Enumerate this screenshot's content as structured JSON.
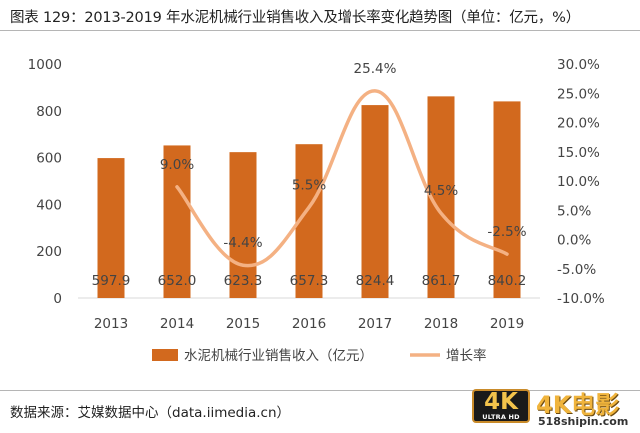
{
  "figure": {
    "title": "图表 129：2013-2019 年水泥机械行业销售收入及增长率变化趋势图（单位：亿元，%）",
    "source": "数据来源：艾媒数据中心（data.iimedia.cn）"
  },
  "chart_data": {
    "type": "bar+line",
    "categories": [
      "2013",
      "2014",
      "2015",
      "2016",
      "2017",
      "2018",
      "2019"
    ],
    "series": [
      {
        "name": "水泥机械行业销售收入（亿元）",
        "type": "bar",
        "axis": "left",
        "color": "#d2691e",
        "values": [
          597.9,
          652.0,
          623.3,
          657.3,
          824.4,
          861.7,
          840.2
        ],
        "labels": [
          "597.9",
          "652.0",
          "623.3",
          "657.3",
          "824.4",
          "861.7",
          "840.2"
        ]
      },
      {
        "name": "增长率",
        "type": "line",
        "axis": "right",
        "color": "#f4b183",
        "values": [
          null,
          9.0,
          -4.4,
          5.5,
          25.4,
          4.5,
          -2.5
        ],
        "labels": [
          "",
          "9.0%",
          "-4.4%",
          "5.5%",
          "25.4%",
          "4.5%",
          "-2.5%"
        ]
      }
    ],
    "y_left": {
      "min": 0,
      "max": 1000,
      "ticks": [
        "0",
        "200",
        "400",
        "600",
        "800",
        "1000"
      ]
    },
    "y_right": {
      "min": -10,
      "max": 30,
      "ticks": [
        "-10.0%",
        "-5.0%",
        "0.0%",
        "5.0%",
        "10.0%",
        "15.0%",
        "20.0%",
        "25.0%",
        "30.0%"
      ]
    },
    "legend_position": "bottom",
    "grid": false
  },
  "watermark": {
    "badge_text": "4K",
    "badge_subtext": "ULTRA HD",
    "name": "4K电影",
    "url": "518shipin.com"
  }
}
